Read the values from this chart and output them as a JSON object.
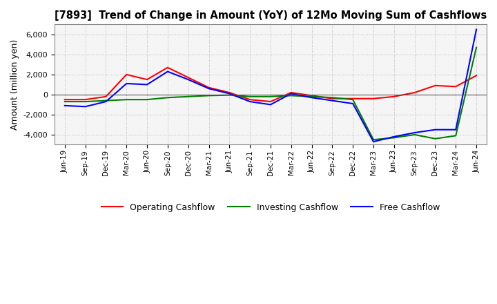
{
  "title": "[7893]  Trend of Change in Amount (YoY) of 12Mo Moving Sum of Cashflows",
  "ylabel": "Amount (million yen)",
  "ylim": [
    -5000,
    7000
  ],
  "yticks": [
    -4000,
    -2000,
    0,
    2000,
    4000,
    6000
  ],
  "background_color": "#ffffff",
  "plot_bg_color": "#f5f5f5",
  "grid_color": "#aaaaaa",
  "x_labels": [
    "Jun-19",
    "Sep-19",
    "Dec-19",
    "Mar-20",
    "Jun-20",
    "Sep-20",
    "Dec-20",
    "Mar-21",
    "Jun-21",
    "Sep-21",
    "Dec-21",
    "Mar-22",
    "Jun-22",
    "Sep-22",
    "Dec-22",
    "Mar-23",
    "Jun-23",
    "Sep-23",
    "Dec-23",
    "Mar-24",
    "Jun-24"
  ],
  "operating_cashflow": [
    -500,
    -500,
    -200,
    2000,
    1500,
    2700,
    1700,
    700,
    200,
    -500,
    -700,
    200,
    -100,
    -400,
    -400,
    -400,
    -200,
    200,
    900,
    800,
    1900
  ],
  "investing_cashflow": [
    -700,
    -700,
    -600,
    -500,
    -500,
    -300,
    -200,
    -100,
    -50,
    -200,
    -200,
    -100,
    -200,
    -300,
    -500,
    -4500,
    -4300,
    -4000,
    -4400,
    -4100,
    4700
  ],
  "free_cashflow": [
    -1100,
    -1200,
    -700,
    1100,
    1000,
    2300,
    1500,
    600,
    100,
    -700,
    -1000,
    100,
    -300,
    -600,
    -900,
    -4700,
    -4200,
    -3800,
    -3500,
    -3500,
    6500
  ],
  "op_color": "#ff0000",
  "inv_color": "#008000",
  "free_color": "#0000ff",
  "line_width": 1.5
}
